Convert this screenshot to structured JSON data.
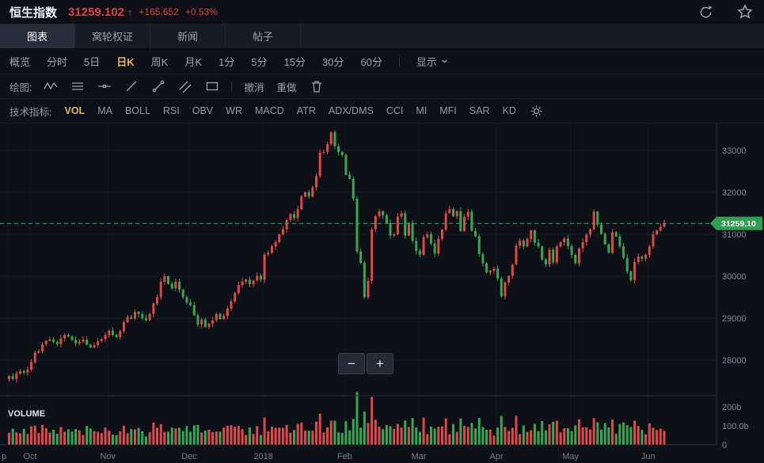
{
  "header": {
    "title": "恒生指数",
    "price": "31259.102",
    "arrow": "↑",
    "change": "+165.652",
    "change_pct": "+0.53%"
  },
  "tabs": [
    {
      "label": "图表",
      "active": true
    },
    {
      "label": "窝轮权证",
      "active": false
    },
    {
      "label": "新闻",
      "active": false
    },
    {
      "label": "帖子",
      "active": false
    }
  ],
  "periods": {
    "items": [
      "概览",
      "分时",
      "5日",
      "日K",
      "周K",
      "月K",
      "1分",
      "5分",
      "15分",
      "30分",
      "60分"
    ],
    "active": "日K",
    "display": "显示"
  },
  "drawing": {
    "label": "绘图:",
    "undo": "撤消",
    "redo": "重做"
  },
  "indicators": {
    "label": "技术指标:",
    "items": [
      "VOL",
      "MA",
      "BOLL",
      "RSI",
      "OBV",
      "WR",
      "MACD",
      "ATR",
      "ADX/DMS",
      "CCI",
      "MI",
      "MFI",
      "SAR",
      "KD"
    ],
    "active": "VOL"
  },
  "zoom": {
    "out": "−",
    "in": "+"
  },
  "chart": {
    "volume_label": "VOLUME"
  },
  "icons": {
    "refresh": "circular-arrow",
    "favorite": "star-outline",
    "display_caret": "chevron-down",
    "settings": "gear",
    "delete": "trash"
  },
  "colors": {
    "up": "#dd4a48",
    "down": "#35a854",
    "accent": "#e6b84c",
    "change": "#e0403f",
    "price_line": "#2fae63",
    "price_tag_bg": "#2f9e4e",
    "grid": "#171d26",
    "axis": "#2a3040",
    "tick_text": "#7e8796"
  },
  "chart_data": {
    "type": "candlestick",
    "title": "恒生指数 日K",
    "last_price": 31259.102,
    "last_label": "31259.10",
    "ylim": [
      27150,
      33640
    ],
    "y_ticks": [
      33000,
      32000,
      31000,
      30000,
      29000,
      28000
    ],
    "vol_ticks": [
      {
        "label": "200b",
        "v": 200
      },
      {
        "label": "100.0b",
        "v": 100
      },
      {
        "label": "0",
        "v": 0
      }
    ],
    "x_ticks": [
      {
        "i": 0,
        "label": "p"
      },
      {
        "i": 6,
        "label": "Oct"
      },
      {
        "i": 27,
        "label": "Nov"
      },
      {
        "i": 49,
        "label": "Dec"
      },
      {
        "i": 69,
        "label": "2018"
      },
      {
        "i": 91,
        "label": "Feb"
      },
      {
        "i": 111,
        "label": "Mar"
      },
      {
        "i": 132,
        "label": "Apr"
      },
      {
        "i": 152,
        "label": "May"
      },
      {
        "i": 173,
        "label": "Jun"
      }
    ],
    "closes": [
      27620,
      27550,
      27680,
      27740,
      27700,
      27770,
      27950,
      28180,
      28210,
      28380,
      28460,
      28490,
      28430,
      28380,
      28520,
      28600,
      28560,
      28480,
      28400,
      28440,
      28490,
      28370,
      28300,
      28360,
      28450,
      28500,
      28600,
      28700,
      28600,
      28550,
      28690,
      28900,
      29030,
      28990,
      29150,
      29100,
      29000,
      28950,
      29100,
      29350,
      29500,
      29870,
      30000,
      29820,
      29710,
      29870,
      29680,
      29500,
      29370,
      29310,
      29070,
      28850,
      28970,
      28790,
      28870,
      28950,
      29100,
      28980,
      29050,
      29230,
      29400,
      29600,
      29790,
      29870,
      29920,
      29810,
      29900,
      30010,
      29920,
      30520,
      30560,
      30710,
      30810,
      31000,
      31120,
      31340,
      31480,
      31390,
      31600,
      31900,
      32000,
      31900,
      32120,
      32390,
      32950,
      32960,
      33150,
      33430,
      33100,
      32960,
      32890,
      32420,
      32320,
      31850,
      30590,
      30320,
      29500,
      29890,
      31120,
      31430,
      31550,
      31450,
      31270,
      30970,
      31000,
      31420,
      31500,
      30970,
      31270,
      30840,
      30600,
      30510,
      30930,
      31000,
      30780,
      30540,
      30890,
      31110,
      31500,
      31600,
      31430,
      31550,
      31080,
      31420,
      31540,
      31080,
      30950,
      30530,
      30310,
      30090,
      30130,
      30180,
      29950,
      29520,
      29850,
      30010,
      30280,
      30730,
      30850,
      30710,
      30890,
      31090,
      30800,
      30710,
      30400,
      30280,
      30630,
      30330,
      30710,
      30810,
      30900,
      30720,
      30510,
      30310,
      30660,
      30810,
      30990,
      31120,
      31540,
      31230,
      31010,
      30760,
      30560,
      31050,
      30950,
      30710,
      30440,
      30110,
      29910,
      30340,
      30470,
      30420,
      30510,
      30710,
      31000,
      31090,
      31180,
      31259.1
    ]
  }
}
